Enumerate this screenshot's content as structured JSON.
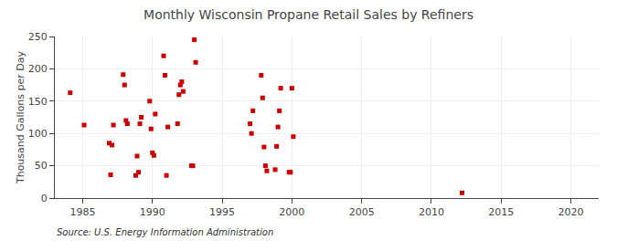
{
  "chart_data": {
    "type": "scatter",
    "title": "Monthly Wisconsin Propane Retail Sales by Refiners",
    "ylabel": "Thousand Gallons per Day",
    "annotations": [
      "Source: U.S. Energy Information Administration"
    ],
    "color": "#cc0000",
    "marker": "square",
    "grid": true,
    "xlim": [
      1983,
      2022
    ],
    "ylim": [
      0,
      250
    ],
    "xticks": [
      1985,
      1990,
      1995,
      2000,
      2005,
      2010,
      2015,
      2020
    ],
    "yticks": [
      0,
      50,
      100,
      150,
      200,
      250
    ],
    "x": [
      1984.1,
      1985.1,
      1986.9,
      1987.0,
      1987.1,
      1987.2,
      1987.9,
      1988.0,
      1988.1,
      1988.2,
      1988.8,
      1988.9,
      1989.0,
      1989.1,
      1989.2,
      1989.8,
      1989.9,
      1990.0,
      1990.1,
      1990.2,
      1990.8,
      1990.9,
      1991.0,
      1991.1,
      1991.8,
      1991.9,
      1992.0,
      1992.1,
      1992.2,
      1992.8,
      1992.9,
      1993.0,
      1993.1,
      1997.0,
      1997.1,
      1997.2,
      1997.8,
      1997.9,
      1998.0,
      1998.1,
      1998.2,
      1998.8,
      1998.9,
      1999.0,
      1999.1,
      1999.2,
      1999.8,
      1999.9,
      2000.0,
      2000.1,
      2012.2
    ],
    "values": [
      163,
      113,
      85,
      36,
      82,
      113,
      191,
      175,
      120,
      115,
      35,
      65,
      40,
      115,
      125,
      150,
      107,
      70,
      66,
      130,
      220,
      190,
      35,
      110,
      115,
      160,
      175,
      180,
      165,
      50,
      50,
      245,
      210,
      115,
      100,
      135,
      190,
      155,
      79,
      50,
      42,
      44,
      80,
      110,
      135,
      170,
      40,
      40,
      170,
      95,
      8
    ]
  }
}
